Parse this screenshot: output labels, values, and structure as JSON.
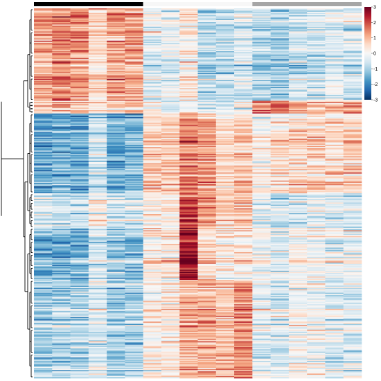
{
  "chart_data": {
    "type": "heatmap",
    "title": "",
    "xlabel": "",
    "ylabel": "",
    "n_columns": 18,
    "n_rows": 320,
    "column_groups": [
      {
        "columns": 6,
        "color": "#000000"
      },
      {
        "columns": 6,
        "color": "#f7f7f7"
      },
      {
        "columns": 6,
        "color": "#a6a6a6"
      }
    ],
    "colorbar": {
      "range": [
        -3,
        3
      ],
      "ticks": [
        3,
        2,
        1,
        0,
        -1,
        -2,
        -3
      ],
      "tick_labels": [
        "3",
        "2",
        "1",
        "0",
        "-1",
        "-2",
        "-3"
      ],
      "colors": [
        "#053061",
        "#2166ac",
        "#4393c3",
        "#92c5de",
        "#d1e5f0",
        "#f7f7f7",
        "#fddbc7",
        "#f4a582",
        "#d6604d",
        "#b2182b",
        "#67001f"
      ]
    },
    "row_clusters": [
      {
        "fraction": 0.25,
        "means": [
          1.2,
          1.5,
          1.3,
          0.5,
          1.2,
          1.2,
          -0.4,
          -0.3,
          0.3,
          -0.8,
          -0.7,
          -0.4,
          -0.9,
          -1.0,
          -0.6,
          -0.5,
          -0.4,
          -0.5
        ]
      },
      {
        "fraction": 0.035,
        "means": [
          0.8,
          1.0,
          0.8,
          0.4,
          0.6,
          0.8,
          0.0,
          -0.2,
          0.0,
          -0.4,
          -0.2,
          0.0,
          1.5,
          1.8,
          1.2,
          0.9,
          1.0,
          1.2
        ]
      },
      {
        "fraction": 0.215,
        "means": [
          -1.6,
          -1.4,
          -1.5,
          -0.6,
          -1.5,
          -1.3,
          0.8,
          0.7,
          1.5,
          1.3,
          0.6,
          0.9,
          0.2,
          0.5,
          0.6,
          0.7,
          0.6,
          0.7
        ]
      },
      {
        "fraction": 0.095,
        "means": [
          -0.4,
          -0.6,
          -0.5,
          0.1,
          -0.4,
          -0.5,
          0.3,
          0.4,
          2.3,
          1.4,
          0.7,
          0.9,
          -0.3,
          -0.7,
          -0.3,
          -0.2,
          -0.4,
          -0.5
        ]
      },
      {
        "fraction": 0.14,
        "means": [
          -1.4,
          -1.5,
          -1.3,
          -0.5,
          -1.1,
          -1.2,
          0.3,
          0.5,
          2.7,
          0.6,
          0.3,
          0.4,
          0.0,
          -0.4,
          0.1,
          0.0,
          -0.2,
          -0.1
        ]
      },
      {
        "fraction": 0.265,
        "means": [
          -1.0,
          -0.9,
          -0.8,
          -0.3,
          -0.9,
          -0.8,
          0.2,
          0.3,
          1.1,
          1.1,
          0.9,
          1.4,
          -0.2,
          -0.5,
          0.1,
          -0.1,
          -0.4,
          -0.3
        ]
      }
    ]
  }
}
